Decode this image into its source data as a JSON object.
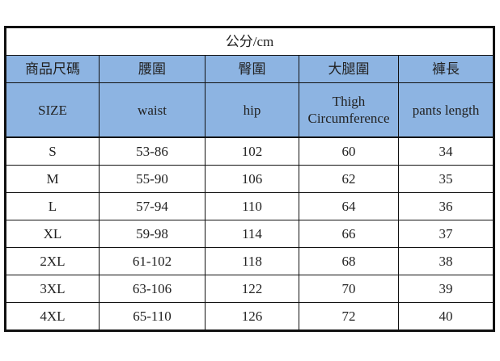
{
  "title": "公分/cm",
  "header_zh": [
    "商品尺碼",
    "腰圍",
    "臀圍",
    "大腿圍",
    "褲長"
  ],
  "header_en": [
    "SIZE",
    "waist",
    "hip",
    "Thigh Circumference",
    "pants length"
  ],
  "rows": [
    [
      "S",
      "53-86",
      "102",
      "60",
      "34"
    ],
    [
      "M",
      "55-90",
      "106",
      "62",
      "35"
    ],
    [
      "L",
      "57-94",
      "110",
      "64",
      "36"
    ],
    [
      "XL",
      "59-98",
      "114",
      "66",
      "37"
    ],
    [
      "2XL",
      "61-102",
      "118",
      "68",
      "38"
    ],
    [
      "3XL",
      "63-106",
      "122",
      "70",
      "39"
    ],
    [
      "4XL",
      "65-110",
      "126",
      "72",
      "40"
    ]
  ],
  "colors": {
    "header_bg": "#8DB4E2",
    "border": "#111111"
  }
}
